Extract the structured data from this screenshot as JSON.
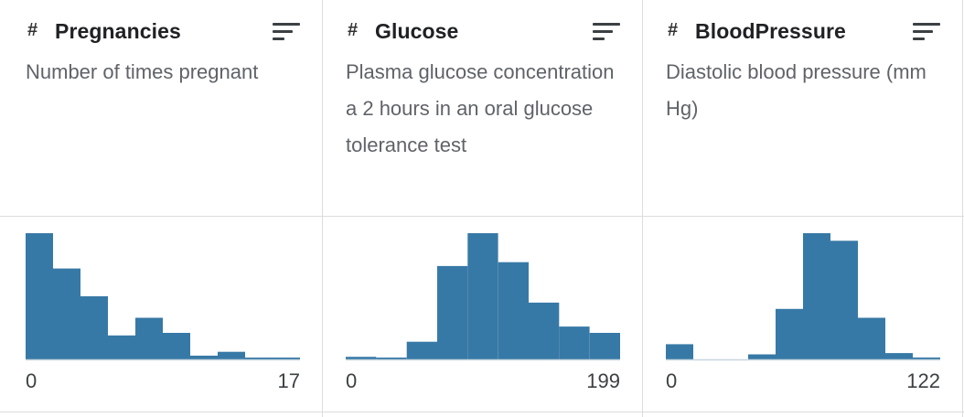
{
  "columns": [
    {
      "name": "Pregnancies",
      "type_icon": "#",
      "description": "Number of times pregnant",
      "min_label": "0",
      "max_label": "17",
      "bar_color": "#3779a6",
      "histogram": [
        1.0,
        0.72,
        0.5,
        0.19,
        0.33,
        0.21,
        0.03,
        0.06,
        0.005,
        0.005
      ]
    },
    {
      "name": "Glucose",
      "type_icon": "#",
      "description": "Plasma glucose concentration a 2 hours in an oral glucose tolerance test",
      "min_label": "0",
      "max_label": "199",
      "bar_color": "#3779a6",
      "histogram": [
        0.02,
        0.01,
        0.14,
        0.74,
        1.0,
        0.77,
        0.45,
        0.26,
        0.21
      ]
    },
    {
      "name": "BloodPressure",
      "type_icon": "#",
      "description": "Diastolic blood pressure (mm Hg)",
      "min_label": "0",
      "max_label": "122",
      "bar_color": "#3779a6",
      "histogram": [
        0.12,
        0.0,
        0.0,
        0.04,
        0.4,
        1.0,
        0.94,
        0.33,
        0.05,
        0.015
      ]
    }
  ]
}
